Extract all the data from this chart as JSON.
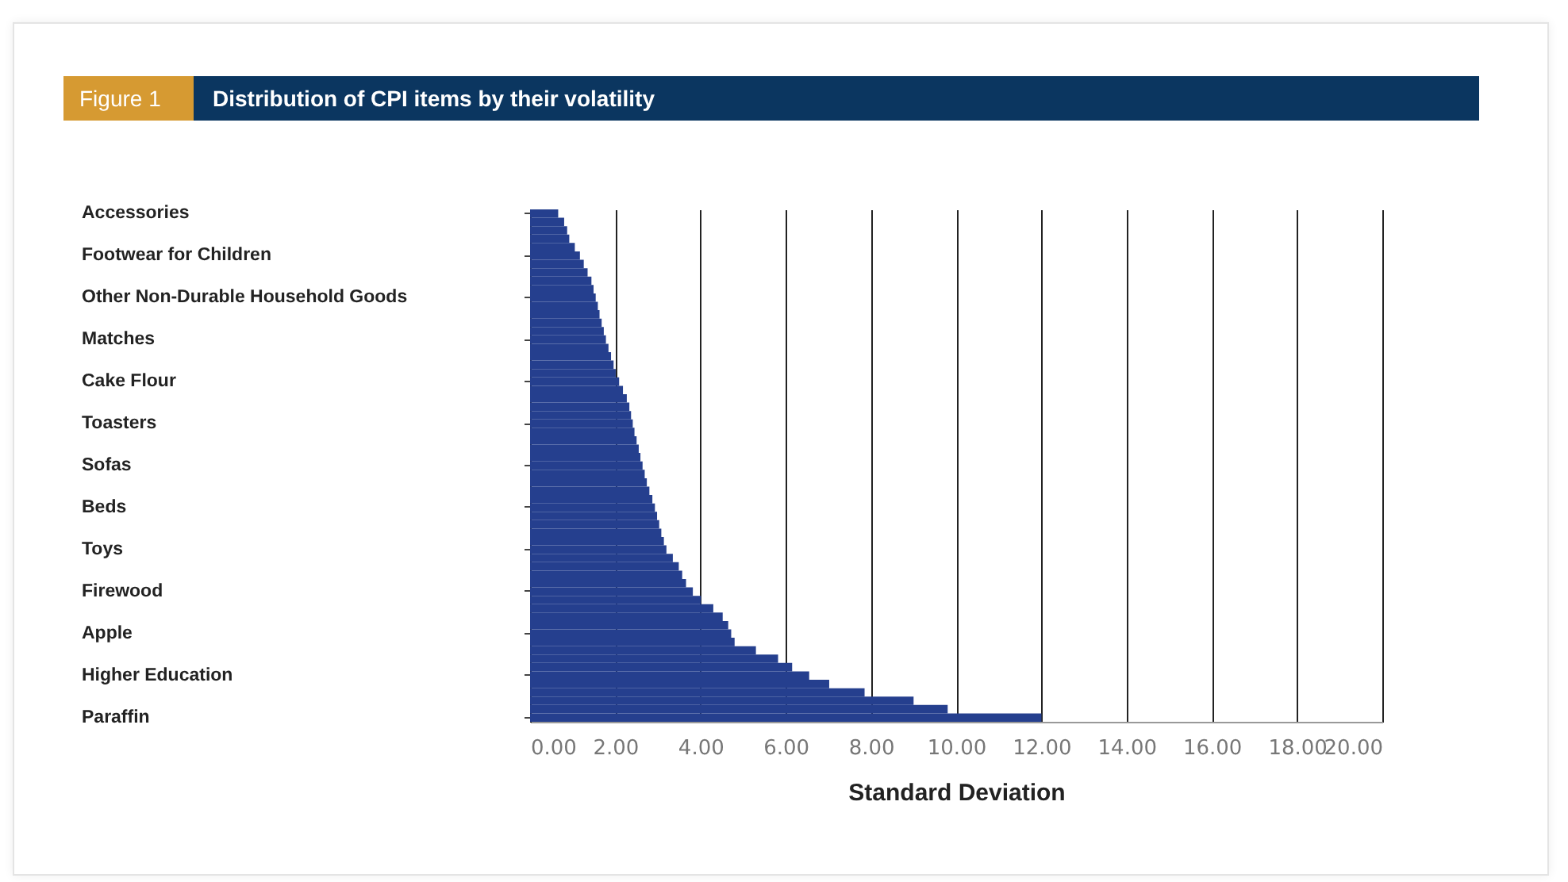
{
  "chart_data": {
    "type": "bar",
    "orientation": "horizontal",
    "title": "Distribution of CPI items by their volatility",
    "annotations": [
      "Figure 1"
    ],
    "xlabel": "Standard Deviation",
    "categories": [
      "Accessories",
      null,
      null,
      null,
      null,
      "Footwear for Children",
      null,
      null,
      null,
      null,
      "Other Non-Durable Household Goods",
      null,
      null,
      null,
      null,
      "Matches",
      null,
      null,
      null,
      null,
      "Cake Flour",
      null,
      null,
      null,
      null,
      "Toasters",
      null,
      null,
      null,
      null,
      "Sofas",
      null,
      null,
      null,
      null,
      "Beds",
      null,
      null,
      null,
      null,
      "Toys",
      null,
      null,
      null,
      null,
      "Firewood",
      null,
      null,
      null,
      null,
      "Apple",
      null,
      null,
      null,
      null,
      "Higher Education",
      null,
      null,
      null,
      null,
      "Paraffin"
    ],
    "values": [
      0.66,
      0.8,
      0.87,
      0.92,
      1.05,
      1.17,
      1.26,
      1.35,
      1.44,
      1.49,
      1.54,
      1.59,
      1.63,
      1.68,
      1.73,
      1.78,
      1.84,
      1.9,
      1.96,
      2.01,
      2.09,
      2.18,
      2.27,
      2.33,
      2.37,
      2.41,
      2.45,
      2.5,
      2.55,
      2.59,
      2.64,
      2.69,
      2.74,
      2.8,
      2.87,
      2.93,
      2.98,
      3.03,
      3.08,
      3.14,
      3.2,
      3.35,
      3.49,
      3.57,
      3.66,
      3.82,
      4.01,
      4.3,
      4.52,
      4.65,
      4.72,
      4.8,
      5.3,
      5.82,
      6.15,
      6.55,
      7.02,
      7.85,
      9.0,
      9.8,
      12.0
    ],
    "color": "#253f8e",
    "xlim": [
      0,
      20
    ],
    "xticks": [
      {
        "value": 0,
        "label": "0.00"
      },
      {
        "value": 2,
        "label": "2.00"
      },
      {
        "value": 4,
        "label": "4.00"
      },
      {
        "value": 6,
        "label": "6.00"
      },
      {
        "value": 8,
        "label": "8.00"
      },
      {
        "value": 10,
        "label": "10.00"
      },
      {
        "value": 12,
        "label": "12.00"
      },
      {
        "value": 14,
        "label": "14.00"
      },
      {
        "value": 16,
        "label": "16.00"
      },
      {
        "value": 18,
        "label": "18.00"
      },
      {
        "value": 20,
        "label": "20.00"
      }
    ],
    "grid": "x"
  }
}
